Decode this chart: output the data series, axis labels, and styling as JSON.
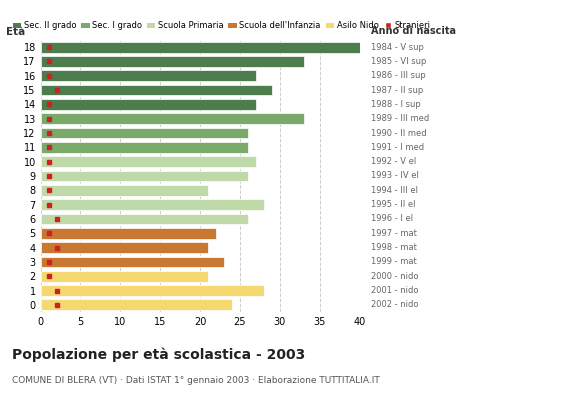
{
  "ages": [
    18,
    17,
    16,
    15,
    14,
    13,
    12,
    11,
    10,
    9,
    8,
    7,
    6,
    5,
    4,
    3,
    2,
    1,
    0
  ],
  "years": [
    "1984 - V sup",
    "1985 - VI sup",
    "1986 - III sup",
    "1987 - II sup",
    "1988 - I sup",
    "1989 - III med",
    "1990 - II med",
    "1991 - I med",
    "1992 - V el",
    "1993 - IV el",
    "1994 - III el",
    "1995 - II el",
    "1996 - I el",
    "1997 - mat",
    "1998 - mat",
    "1999 - mat",
    "2000 - nido",
    "2001 - nido",
    "2002 - nido"
  ],
  "values": [
    40,
    33,
    27,
    29,
    27,
    33,
    26,
    26,
    27,
    26,
    21,
    28,
    26,
    22,
    21,
    23,
    21,
    28,
    24
  ],
  "stranieri": [
    1,
    1,
    1,
    2,
    1,
    1,
    1,
    1,
    1,
    1,
    1,
    1,
    2,
    1,
    2,
    1,
    1,
    2,
    2
  ],
  "bar_colors": [
    "#4d7c4d",
    "#4d7c4d",
    "#4d7c4d",
    "#4d7c4d",
    "#4d7c4d",
    "#7aaa6a",
    "#7aaa6a",
    "#7aaa6a",
    "#c0d9a8",
    "#c0d9a8",
    "#c0d9a8",
    "#c0d9a8",
    "#c0d9a8",
    "#c87830",
    "#c87830",
    "#c87830",
    "#f5d870",
    "#f5d870",
    "#f5d870"
  ],
  "legend_labels": [
    "Sec. II grado",
    "Sec. I grado",
    "Scuola Primaria",
    "Scuola dell'Infanzia",
    "Asilo Nido",
    "Stranieri"
  ],
  "legend_colors": [
    "#4d7c4d",
    "#7aaa6a",
    "#c0d9a8",
    "#c87830",
    "#f5d870",
    "#cc2222"
  ],
  "stranieri_color": "#cc2222",
  "title": "Popolazione per età scolastica - 2003",
  "subtitle": "COMUNE DI BLERA (VT) · Dati ISTAT 1° gennaio 2003 · Elaborazione TUTTITALIA.IT",
  "xlabel_age": "Età",
  "xlabel_year": "Anno di nascita",
  "xlim": [
    0,
    40
  ],
  "xticks": [
    0,
    5,
    10,
    15,
    20,
    25,
    30,
    35,
    40
  ],
  "bg_color": "#ffffff",
  "grid_color": "#cccccc",
  "bar_height": 0.75
}
